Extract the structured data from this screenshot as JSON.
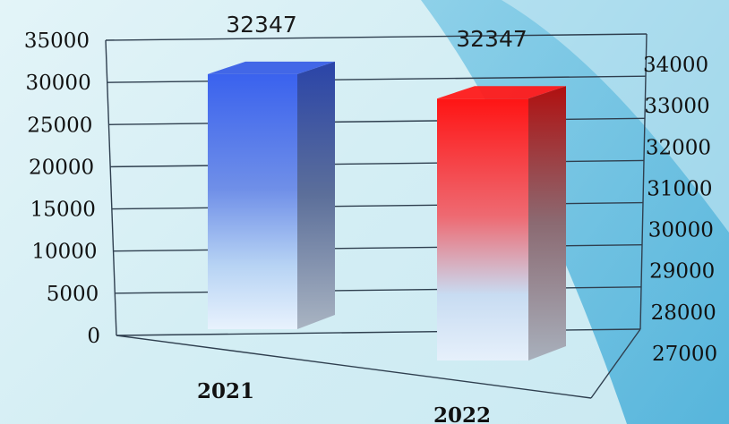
{
  "chart_data": {
    "type": "bar",
    "categories": [
      "2021",
      "2022"
    ],
    "series": [
      {
        "values": [
          32347,
          32347
        ],
        "colors": [
          "#3b64e8",
          "#ff1a1a"
        ]
      }
    ],
    "data_labels": [
      "32347",
      "32347"
    ],
    "y_left": {
      "ticks": [
        "0",
        "5000",
        "10000",
        "15000",
        "20000",
        "25000",
        "30000",
        "35000"
      ],
      "range": [
        0,
        35000
      ]
    },
    "y_right": {
      "ticks": [
        "27000",
        "28000",
        "29000",
        "30000",
        "31000",
        "32000",
        "33000",
        "34000"
      ],
      "range": [
        27000,
        34000
      ]
    },
    "grid": true,
    "style": "3d"
  }
}
